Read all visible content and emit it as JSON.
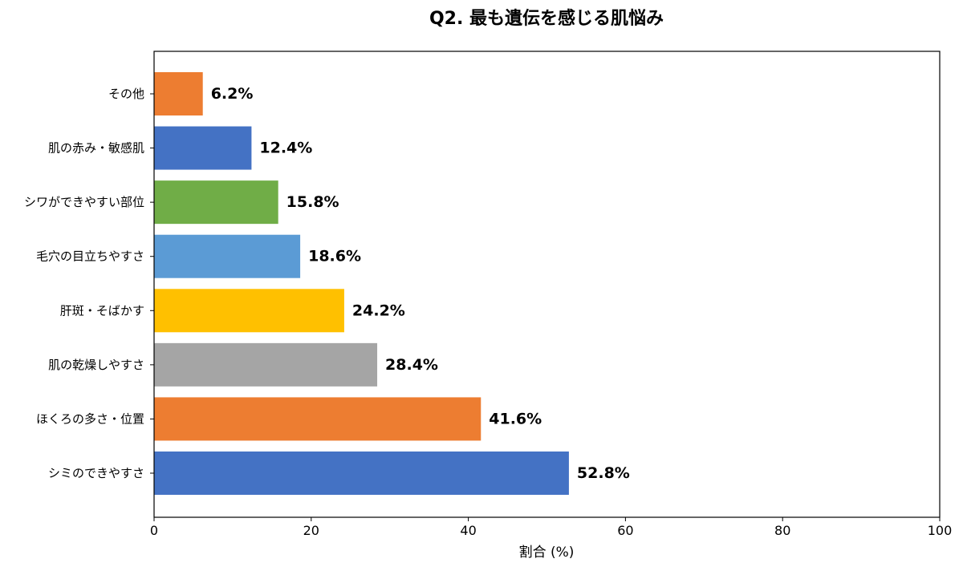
{
  "chart_data": {
    "type": "bar",
    "orientation": "horizontal",
    "title": "Q2. 最も遺伝を感じる肌悩み",
    "xlabel": "割合 (%)",
    "ylabel": "",
    "xlim": [
      0,
      100
    ],
    "xticks": [
      0,
      20,
      40,
      60,
      80,
      100
    ],
    "grid": false,
    "categories": [
      "その他",
      "肌の赤み・敏感肌",
      "シワができやすい部位",
      "毛穴の目立ちやすさ",
      "肝斑・そばかす",
      "肌の乾燥しやすさ",
      "ほくろの多さ・位置",
      "シミのできやすさ"
    ],
    "values": [
      6.2,
      12.4,
      15.8,
      18.6,
      24.2,
      28.4,
      41.6,
      52.8
    ],
    "value_labels": [
      "6.2%",
      "12.4%",
      "15.8%",
      "18.6%",
      "24.2%",
      "28.4%",
      "41.6%",
      "52.8%"
    ],
    "colors": [
      "#ED7D31",
      "#4472C4",
      "#70AD47",
      "#5B9BD5",
      "#FFC000",
      "#A5A5A5",
      "#ED7D31",
      "#4472C4"
    ]
  }
}
